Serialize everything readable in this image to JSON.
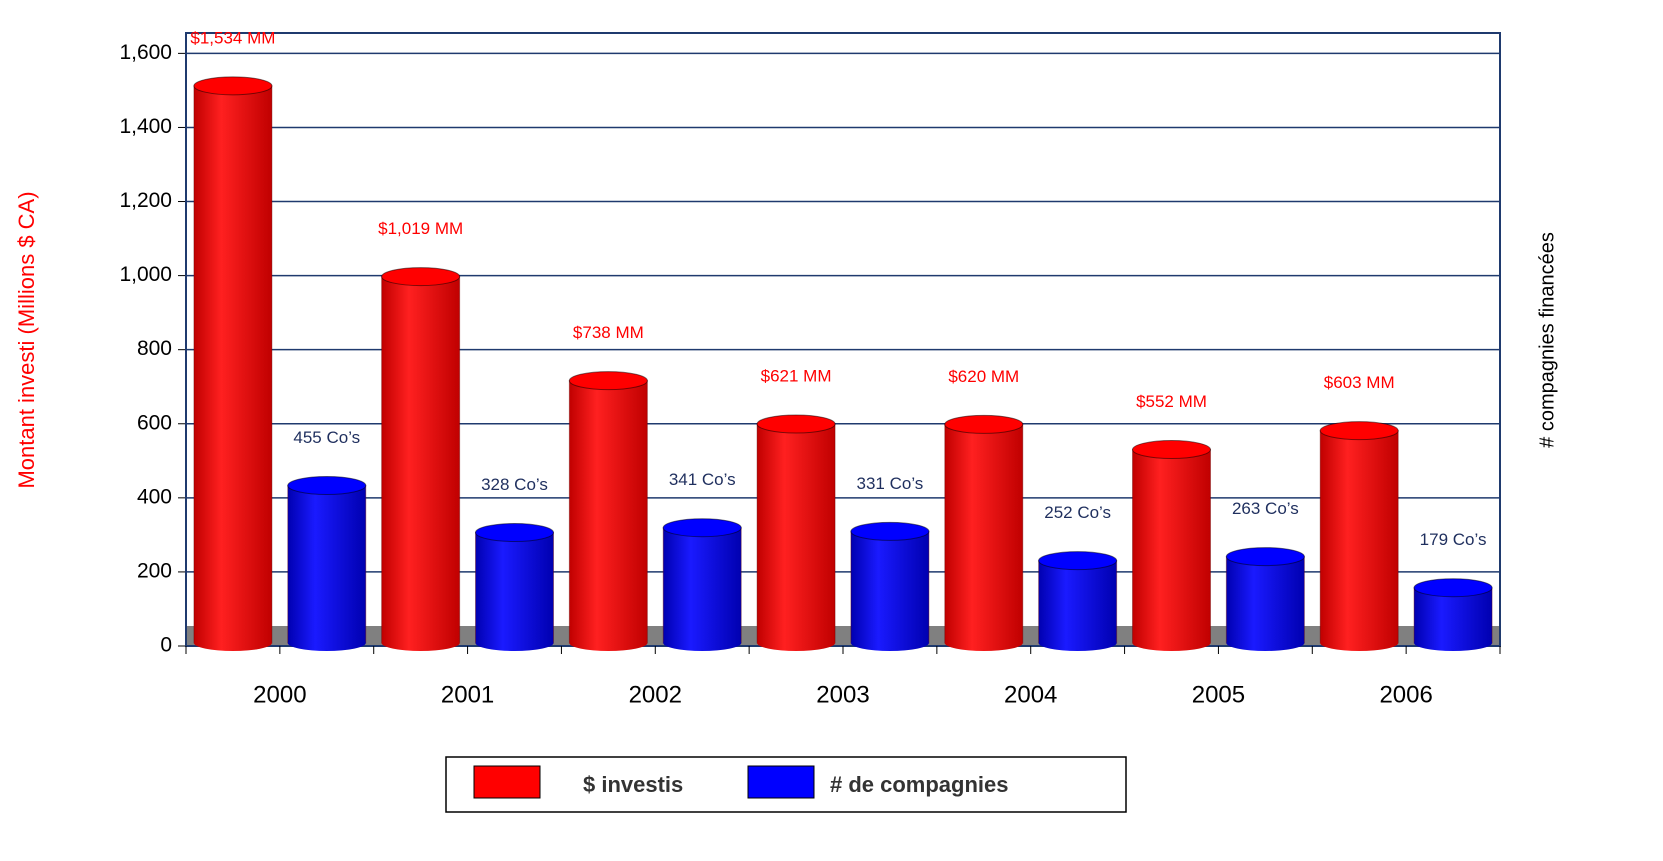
{
  "chart_data": {
    "type": "bar",
    "y_label": "Montant investi (Millions $ CA)",
    "y2_label": "# compagnies financées",
    "categories": [
      "2000",
      "2001",
      "2002",
      "2003",
      "2004",
      "2005",
      "2006"
    ],
    "series": [
      {
        "name": "$ investis",
        "color": "#ff0000",
        "values": [
          1534,
          1019,
          738,
          621,
          620,
          552,
          603
        ],
        "value_labels": [
          "$1,534 MM",
          "$1,019 MM",
          "$738 MM",
          "$621 MM",
          "$620 MM",
          "$552 MM",
          "$603 MM"
        ]
      },
      {
        "name": "# de compagnies",
        "color": "#0000ff",
        "axis": "y2",
        "values": [
          455,
          328,
          341,
          331,
          252,
          263,
          179
        ],
        "value_labels": [
          "455 Co’s",
          "328 Co’s",
          "341 Co’s",
          "331 Co’s",
          "252 Co’s",
          "263 Co’s",
          "179 Co’s"
        ]
      }
    ],
    "ylim": [
      0,
      1655
    ],
    "yticks": [
      0,
      200,
      400,
      600,
      800,
      {
        "value": 1000,
        "label": "1,000"
      },
      {
        "value": 1200,
        "label": "1,200"
      },
      {
        "value": 1400,
        "label": "1,400"
      },
      {
        "value": 1600,
        "label": "1,600"
      }
    ],
    "y2lim": [
      0,
      1655
    ],
    "grid": true
  }
}
